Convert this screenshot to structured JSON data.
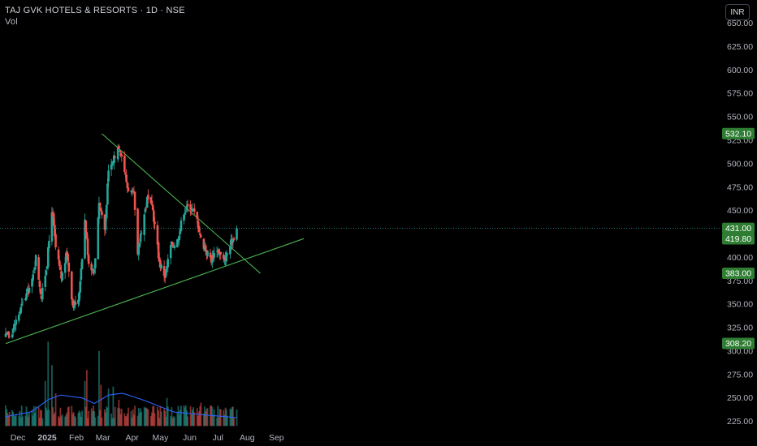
{
  "header": {
    "title": "TAJ GVK HOTELS & RESORTS · 1D · NSE",
    "subtitle": "Vol",
    "currency_button": "INR"
  },
  "colors": {
    "background": "#000000",
    "up": "#26a69a",
    "down": "#ef5350",
    "volume_ma": "#2962ff",
    "trendline": "#4caf50",
    "price_badge": "#2e7d32",
    "axis_text": "#b2b5be"
  },
  "chart_data": {
    "type": "candlestick",
    "title": "TAJ GVK HOTELS & RESORTS · 1D · NSE",
    "y_axis": {
      "ticks": [
        "225.00",
        "250.00",
        "275.00",
        "300.00",
        "325.00",
        "350.00",
        "375.00",
        "400.00",
        "425.00",
        "450.00",
        "475.00",
        "500.00",
        "525.00",
        "550.00",
        "575.00",
        "600.00",
        "625.00",
        "650.00"
      ],
      "range": [
        220,
        652
      ]
    },
    "x_axis": {
      "ticks": [
        "Dec",
        "2025",
        "Feb",
        "Mar",
        "Apr",
        "May",
        "Jun",
        "Jul",
        "Aug",
        "Sep"
      ]
    },
    "grid": false,
    "price_badges": [
      {
        "label": "532.10"
      },
      {
        "label": "431.00"
      },
      {
        "label": "419.80"
      },
      {
        "label": "383.00"
      },
      {
        "label": "308.20"
      }
    ],
    "last_price": 431.0,
    "trendlines": [
      {
        "name": "upper",
        "from": {
          "date": "2025-02-28",
          "price": 532
        },
        "to": {
          "date": "2025-08-15",
          "price": 383
        }
      },
      {
        "name": "lower",
        "from": {
          "date": "2024-11-18",
          "price": 308
        },
        "to": {
          "date": "2025-09-30",
          "price": 420
        }
      }
    ],
    "series": [
      {
        "name": "price",
        "anchors": [
          [
            "2024-11-18",
            315
          ],
          [
            "2024-11-25",
            322
          ],
          [
            "2024-12-02",
            340
          ],
          [
            "2024-12-09",
            358
          ],
          [
            "2024-12-16",
            374
          ],
          [
            "2024-12-20",
            400
          ],
          [
            "2024-12-26",
            357
          ],
          [
            "2025-01-01",
            395
          ],
          [
            "2025-01-06",
            452
          ],
          [
            "2025-01-10",
            410
          ],
          [
            "2025-01-16",
            378
          ],
          [
            "2025-01-22",
            405
          ],
          [
            "2025-01-28",
            350
          ],
          [
            "2025-02-03",
            352
          ],
          [
            "2025-02-10",
            440
          ],
          [
            "2025-02-14",
            395
          ],
          [
            "2025-02-20",
            385
          ],
          [
            "2025-02-25",
            460
          ],
          [
            "2025-03-03",
            430
          ],
          [
            "2025-03-07",
            490
          ],
          [
            "2025-03-12",
            505
          ],
          [
            "2025-03-18",
            520
          ],
          [
            "2025-03-22",
            505
          ],
          [
            "2025-03-27",
            475
          ],
          [
            "2025-04-03",
            465
          ],
          [
            "2025-04-07",
            400
          ],
          [
            "2025-04-10",
            425
          ],
          [
            "2025-04-17",
            462
          ],
          [
            "2025-04-23",
            450
          ],
          [
            "2025-04-30",
            395
          ],
          [
            "2025-05-06",
            380
          ],
          [
            "2025-05-12",
            412
          ],
          [
            "2025-05-19",
            418
          ],
          [
            "2025-05-26",
            450
          ],
          [
            "2025-06-02",
            455
          ],
          [
            "2025-06-09",
            440
          ],
          [
            "2025-06-13",
            420
          ],
          [
            "2025-06-18",
            408
          ],
          [
            "2025-06-24",
            398
          ],
          [
            "2025-06-30",
            410
          ],
          [
            "2025-07-07",
            396
          ],
          [
            "2025-07-11",
            405
          ],
          [
            "2025-07-17",
            420
          ],
          [
            "2025-07-21",
            431
          ]
        ]
      },
      {
        "name": "volume",
        "range": [
          225,
          312
        ],
        "spikes": [
          [
            "2024-12-30",
            268
          ],
          [
            "2025-01-02",
            310
          ],
          [
            "2025-01-06",
            285
          ],
          [
            "2025-01-10",
            255
          ],
          [
            "2025-02-10",
            268
          ],
          [
            "2025-02-12",
            280
          ],
          [
            "2025-02-25",
            300
          ],
          [
            "2025-02-27",
            264
          ],
          [
            "2025-03-07",
            260
          ],
          [
            "2025-03-12",
            262
          ],
          [
            "2025-03-18",
            248
          ],
          [
            "2025-05-08",
            250
          ],
          [
            "2025-05-26",
            242
          ],
          [
            "2025-06-13",
            245
          ],
          [
            "2025-06-19",
            238
          ]
        ],
        "ma_anchors": [
          [
            "2024-11-18",
            230
          ],
          [
            "2024-12-15",
            235
          ],
          [
            "2025-01-02",
            248
          ],
          [
            "2025-01-15",
            253
          ],
          [
            "2025-02-07",
            250
          ],
          [
            "2025-02-20",
            244
          ],
          [
            "2025-03-07",
            253
          ],
          [
            "2025-03-22",
            255
          ],
          [
            "2025-04-15",
            247
          ],
          [
            "2025-05-15",
            235
          ],
          [
            "2025-06-15",
            232
          ],
          [
            "2025-07-21",
            229
          ]
        ]
      }
    ]
  }
}
